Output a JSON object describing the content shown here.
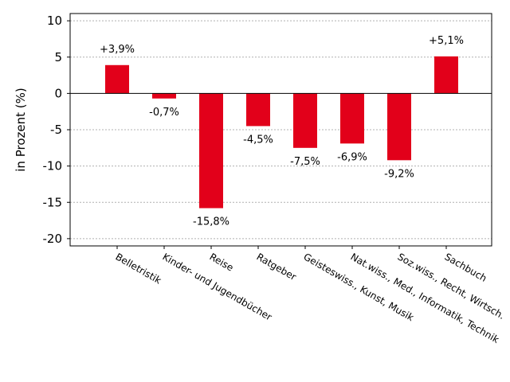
{
  "chart_data": {
    "type": "bar",
    "ylabel": "in Prozent (%)",
    "ylim": [
      -21,
      11
    ],
    "yticks": [
      10,
      5,
      0,
      -5,
      -10,
      -15,
      -20
    ],
    "ytick_labels": [
      "10",
      "5",
      "0",
      "-5",
      "-10",
      "-15",
      "-20"
    ],
    "grid": "horizontal dotted",
    "bar_color": "#e2001a",
    "categories": [
      "Belletristik",
      "Kinder- und Jugendbücher",
      "Reise",
      "Ratgeber",
      "Geisteswiss., Kunst, Musik",
      "Nat.wiss., Med., Informatik, Technik",
      "Soz.wiss., Recht, Wirtsch.",
      "Sachbuch"
    ],
    "values": [
      3.9,
      -0.7,
      -15.8,
      -4.5,
      -7.5,
      -6.9,
      -9.2,
      5.1
    ],
    "data_labels": [
      "+3,9%",
      "-0,7%",
      "-15,8%",
      "-4,5%",
      "-7,5%",
      "-6,9%",
      "-9,2%",
      "+5,1%"
    ]
  }
}
